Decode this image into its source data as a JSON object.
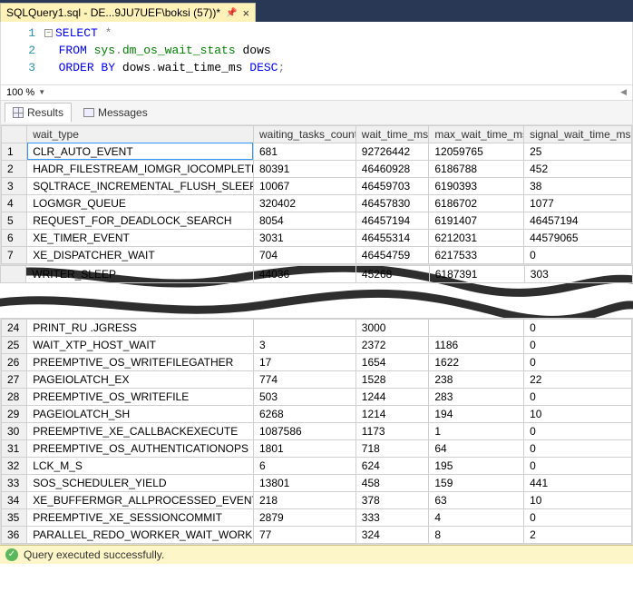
{
  "tab": {
    "title": "SQLQuery1.sql - DE...9JU7UEF\\boksi (57))*"
  },
  "editor": {
    "zoom": "100 %",
    "lines": [
      {
        "num": "1",
        "tokens": [
          {
            "t": "box",
            "v": "-"
          },
          {
            "t": "kw",
            "v": "SELECT "
          },
          {
            "t": "star",
            "v": "*"
          }
        ]
      },
      {
        "num": "2",
        "tokens": [
          {
            "t": "plain",
            "v": "  "
          },
          {
            "t": "kw",
            "v": "FROM "
          },
          {
            "t": "obj",
            "v": "sys"
          },
          {
            "t": "op",
            "v": "."
          },
          {
            "t": "obj",
            "v": "dm_os_wait_stats "
          },
          {
            "t": "plain",
            "v": "dows"
          }
        ]
      },
      {
        "num": "3",
        "tokens": [
          {
            "t": "plain",
            "v": "  "
          },
          {
            "t": "kw",
            "v": "ORDER BY "
          },
          {
            "t": "plain",
            "v": "dows"
          },
          {
            "t": "op",
            "v": "."
          },
          {
            "t": "plain",
            "v": "wait_time_ms "
          },
          {
            "t": "kw",
            "v": "DESC"
          },
          {
            "t": "op",
            "v": ";"
          }
        ]
      }
    ]
  },
  "tabs": {
    "results": "Results",
    "messages": "Messages"
  },
  "grid": {
    "columns": [
      "wait_type",
      "waiting_tasks_count",
      "wait_time_ms",
      "max_wait_time_ms",
      "signal_wait_time_ms"
    ],
    "rows_top": [
      {
        "n": "1",
        "c": [
          "CLR_AUTO_EVENT",
          "681",
          "92726442",
          "12059765",
          "25"
        ]
      },
      {
        "n": "2",
        "c": [
          "HADR_FILESTREAM_IOMGR_IOCOMPLETION",
          "80391",
          "46460928",
          "6186788",
          "452"
        ]
      },
      {
        "n": "3",
        "c": [
          "SQLTRACE_INCREMENTAL_FLUSH_SLEEP",
          "10067",
          "46459703",
          "6190393",
          "38"
        ]
      },
      {
        "n": "4",
        "c": [
          "LOGMGR_QUEUE",
          "320402",
          "46457830",
          "6186702",
          "1077"
        ]
      },
      {
        "n": "5",
        "c": [
          "REQUEST_FOR_DEADLOCK_SEARCH",
          "8054",
          "46457194",
          "6191407",
          "46457194"
        ]
      },
      {
        "n": "6",
        "c": [
          "XE_TIMER_EVENT",
          "3031",
          "46455314",
          "6212031",
          "44579065"
        ]
      },
      {
        "n": "7",
        "c": [
          "XE_DISPATCHER_WAIT",
          "704",
          "46454759",
          "6217533",
          "0"
        ]
      }
    ],
    "torn_row": {
      "n": "",
      "c": [
        "WRITER_SLEEP",
        "44036",
        "45268",
        "6187391",
        "303"
      ]
    },
    "rows_bottom": [
      {
        "n": "24",
        "c": [
          "PRINT_RU                  .JGRESS",
          "",
          "3000",
          "",
          "0"
        ]
      },
      {
        "n": "25",
        "c": [
          "WAIT_XTP_HOST_WAIT",
          "3",
          "2372",
          "1186",
          "0"
        ]
      },
      {
        "n": "26",
        "c": [
          "PREEMPTIVE_OS_WRITEFILEGATHER",
          "17",
          "1654",
          "1622",
          "0"
        ]
      },
      {
        "n": "27",
        "c": [
          "PAGEIOLATCH_EX",
          "774",
          "1528",
          "238",
          "22"
        ]
      },
      {
        "n": "28",
        "c": [
          "PREEMPTIVE_OS_WRITEFILE",
          "503",
          "1244",
          "283",
          "0"
        ]
      },
      {
        "n": "29",
        "c": [
          "PAGEIOLATCH_SH",
          "6268",
          "1214",
          "194",
          "10"
        ]
      },
      {
        "n": "30",
        "c": [
          "PREEMPTIVE_XE_CALLBACKEXECUTE",
          "1087586",
          "1173",
          "1",
          "0"
        ]
      },
      {
        "n": "31",
        "c": [
          "PREEMPTIVE_OS_AUTHENTICATIONOPS",
          "1801",
          "718",
          "64",
          "0"
        ]
      },
      {
        "n": "32",
        "c": [
          "LCK_M_S",
          "6",
          "624",
          "195",
          "0"
        ]
      },
      {
        "n": "33",
        "c": [
          "SOS_SCHEDULER_YIELD",
          "13801",
          "458",
          "159",
          "441"
        ]
      },
      {
        "n": "34",
        "c": [
          "XE_BUFFERMGR_ALLPROCESSED_EVENT",
          "218",
          "378",
          "63",
          "10"
        ]
      },
      {
        "n": "35",
        "c": [
          "PREEMPTIVE_XE_SESSIONCOMMIT",
          "2879",
          "333",
          "4",
          "0"
        ]
      },
      {
        "n": "36",
        "c": [
          "PARALLEL_REDO_WORKER_WAIT_WORK",
          "77",
          "324",
          "8",
          "2"
        ]
      }
    ]
  },
  "status": {
    "text": "Query executed successfully."
  },
  "colors": {
    "torn_stroke": "#2e2e2e",
    "tab_bar": "#293955",
    "active_tab": "#fff2b9",
    "status_bg": "#fdf6c8"
  }
}
